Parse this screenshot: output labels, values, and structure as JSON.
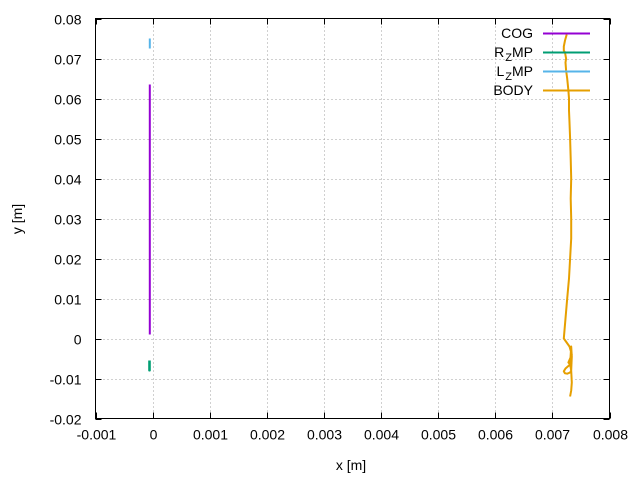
{
  "chart_data": {
    "type": "line",
    "title": "",
    "xlabel": "x [m]",
    "ylabel": "y [m]",
    "xlim": [
      -0.001,
      0.008
    ],
    "ylim": [
      -0.02,
      0.08
    ],
    "x_ticks": [
      -0.001,
      0,
      0.001,
      0.002,
      0.003,
      0.004,
      0.005,
      0.006,
      0.007,
      0.008
    ],
    "x_tick_labels": [
      "-0.001",
      "0",
      "0.001",
      "0.002",
      "0.003",
      "0.004",
      "0.005",
      "0.006",
      "0.007",
      "0.008"
    ],
    "y_ticks": [
      -0.02,
      -0.01,
      0,
      0.01,
      0.02,
      0.03,
      0.04,
      0.05,
      0.06,
      0.07,
      0.08
    ],
    "y_tick_labels": [
      "-0.02",
      "-0.01",
      "0",
      "0.01",
      "0.02",
      "0.03",
      "0.04",
      "0.05",
      "0.06",
      "0.07",
      "0.08"
    ],
    "grid": true,
    "legend_position": "top-right",
    "series": [
      {
        "name": "COG",
        "legend_parts": [
          {
            "text": "COG",
            "sub": false
          }
        ],
        "color": "#9400d3",
        "x": [
          -5e-05,
          -5e-05
        ],
        "y": [
          0.001,
          0.0635
        ]
      },
      {
        "name": "R_Z MP",
        "legend_parts": [
          {
            "text": "R",
            "sub": false
          },
          {
            "text": "Z",
            "sub": true
          },
          {
            "text": "MP",
            "sub": false
          }
        ],
        "color": "#009e73",
        "x": [
          -6e-05,
          -6e-05,
          -5e-05,
          -5e-05
        ],
        "y": [
          -0.0055,
          -0.008,
          -0.008,
          -0.0055
        ]
      },
      {
        "name": "L_Z MP",
        "legend_parts": [
          {
            "text": "L",
            "sub": false
          },
          {
            "text": "Z",
            "sub": true
          },
          {
            "text": "MP",
            "sub": false
          }
        ],
        "color": "#56b4e9",
        "x": [
          -5e-05,
          -5e-05
        ],
        "y": [
          0.0725,
          0.075
        ]
      },
      {
        "name": "BODY",
        "legend_parts": [
          {
            "text": "BODY",
            "sub": false
          }
        ],
        "color": "#e69f00",
        "x": [
          0.00725,
          0.00722,
          0.0072,
          0.0072,
          0.00722,
          0.00724,
          0.00723,
          0.00724,
          0.00726,
          0.00728,
          0.00729,
          0.00729,
          0.0073,
          0.00731,
          0.00732,
          0.00733,
          0.00732,
          0.00733,
          0.00733,
          0.00731,
          0.00729,
          0.00726,
          0.00723,
          0.0072,
          0.0073,
          0.00734,
          0.00728,
          0.00731,
          0.00732,
          0.00733,
          0.00734,
          0.00733,
          0.00731,
          0.00726,
          0.00722,
          0.0072,
          0.00723,
          0.00731,
          0.00733,
          0.00734,
          0.00733,
          0.00731
        ],
        "y": [
          0.076,
          0.0745,
          0.073,
          0.072,
          0.0715,
          0.07,
          0.069,
          0.067,
          0.065,
          0.062,
          0.06,
          0.057,
          0.054,
          0.05,
          0.045,
          0.04,
          0.035,
          0.03,
          0.025,
          0.02,
          0.015,
          0.01,
          0.005,
          0.0,
          -0.002,
          -0.004,
          -0.006,
          -0.0065,
          -0.004,
          -0.002,
          -0.0045,
          -0.008,
          -0.0085,
          -0.0088,
          -0.0087,
          -0.0082,
          -0.0075,
          -0.0065,
          -0.008,
          -0.011,
          -0.013,
          -0.0145
        ]
      }
    ]
  }
}
